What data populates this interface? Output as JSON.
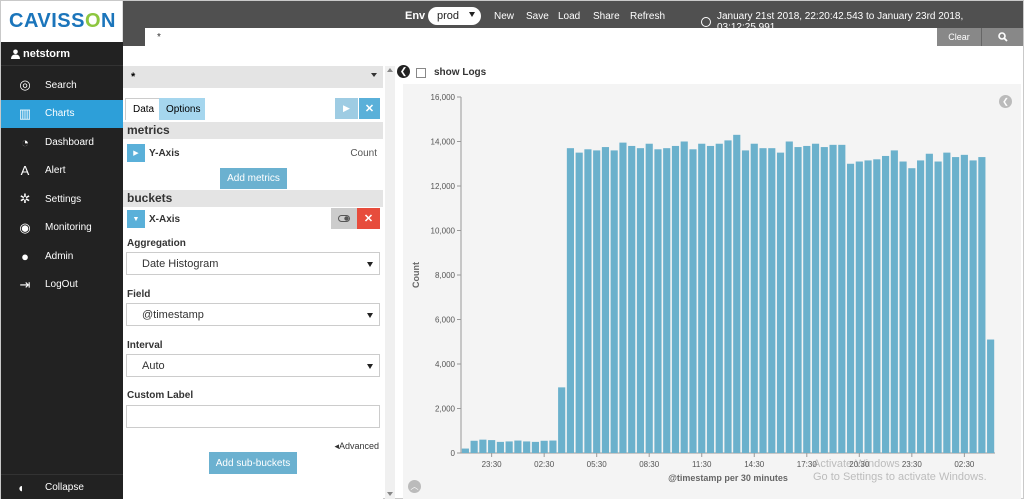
{
  "app": {
    "logo": "CAVISSON",
    "user": "netstorm"
  },
  "sidebar": {
    "items": [
      {
        "label": "Search",
        "icon": "compass-icon"
      },
      {
        "label": "Charts",
        "icon": "bar-chart-icon"
      },
      {
        "label": "Dashboard",
        "icon": "dashboard-icon"
      },
      {
        "label": "Alert",
        "icon": "alert-icon"
      },
      {
        "label": "Settings",
        "icon": "gear-icon"
      },
      {
        "label": "Monitoring",
        "icon": "globe-icon"
      },
      {
        "label": "Admin",
        "icon": "user-icon"
      },
      {
        "label": "LogOut",
        "icon": "logout-icon"
      }
    ],
    "active": "Charts",
    "collapse": "Collapse"
  },
  "topbar": {
    "env_label": "Env",
    "env_value": "prod",
    "new": "New",
    "save": "Save",
    "load": "Load",
    "share": "Share",
    "refresh": "Refresh",
    "time_range": "January 21st 2018, 22:20:42.543 to January 23rd 2018, 03:12:25.991",
    "query": "*",
    "clear": "Clear"
  },
  "panel": {
    "index_pattern": "*",
    "tabs": {
      "data": "Data",
      "options": "Options"
    },
    "metrics_title": "metrics",
    "metric": {
      "name": "Y-Axis",
      "value": "Count"
    },
    "add_metrics": "Add metrics",
    "buckets_title": "buckets",
    "bucket": {
      "name": "X-Axis"
    },
    "aggregation_label": "Aggregation",
    "aggregation_value": "Date Histogram",
    "field_label": "Field",
    "field_value": "@timestamp",
    "interval_label": "Interval",
    "interval_value": "Auto",
    "custom_label": "Custom Label",
    "custom_value": "",
    "advanced": "Advanced",
    "add_sub_buckets": "Add sub-buckets"
  },
  "right": {
    "show_logs": "show Logs",
    "watermark_1": "Activate Windows",
    "watermark_2": "Go to Settings to activate Windows."
  },
  "colors": {
    "accent": "#2d9fd9",
    "bar": "#6bb1cc",
    "sidebar_bg": "#222222",
    "danger": "#e74c3c"
  },
  "chart_data": {
    "type": "bar",
    "xlabel": "@timestamp per 30 minutes",
    "ylabel": "Count",
    "ylim": [
      0,
      16000
    ],
    "yticks": [
      0,
      2000,
      4000,
      6000,
      8000,
      10000,
      12000,
      14000,
      16000
    ],
    "ytick_labels": [
      "0",
      "2,000",
      "4,000",
      "6,000",
      "8,000",
      "10,000",
      "12,000",
      "14,000",
      "16,000"
    ],
    "xtick_labels": [
      "23:30",
      "02:30",
      "05:30",
      "08:30",
      "11:30",
      "14:30",
      "17:30",
      "20:30",
      "23:30",
      "02:30"
    ],
    "xtick_indices": [
      3,
      9,
      15,
      21,
      27,
      33,
      39,
      45,
      51,
      57
    ],
    "values": [
      200,
      550,
      600,
      580,
      500,
      520,
      560,
      520,
      500,
      550,
      560,
      2950,
      13700,
      13500,
      13650,
      13600,
      13750,
      13600,
      13950,
      13800,
      13700,
      13900,
      13650,
      13700,
      13800,
      14000,
      13650,
      13900,
      13800,
      13900,
      14050,
      14300,
      13600,
      13900,
      13700,
      13700,
      13500,
      14000,
      13750,
      13800,
      13900,
      13750,
      13850,
      13850,
      13000,
      13100,
      13150,
      13200,
      13350,
      13600,
      13100,
      12800,
      13150,
      13450,
      13100,
      13500,
      13300,
      13400,
      13150,
      13300,
      5100
    ]
  }
}
